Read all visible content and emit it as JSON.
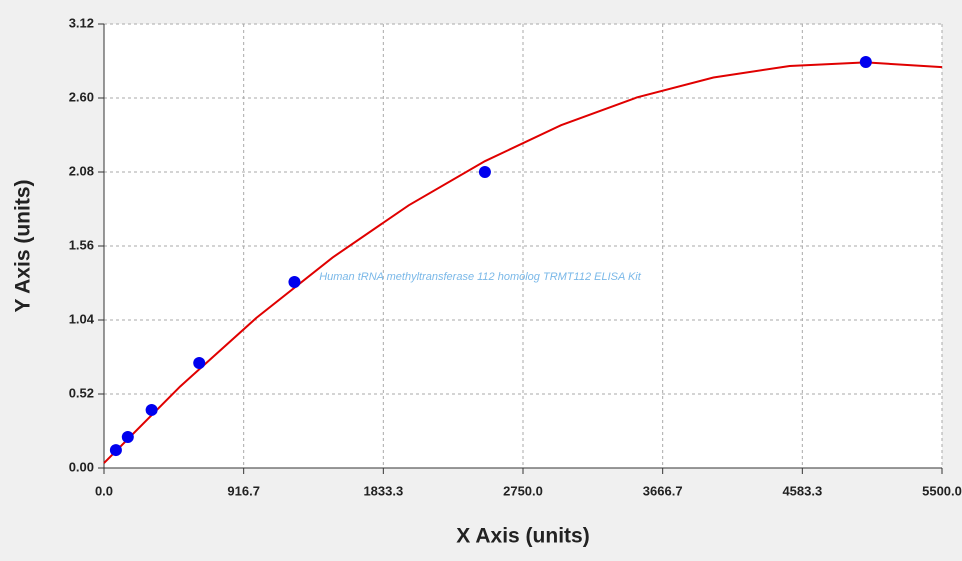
{
  "chart_data": {
    "type": "scatter",
    "x_label": "X Axis (units)",
    "y_label": "Y Axis (units)",
    "annotation": "Human tRNA methyltransferase 112 homolog TRMT112 ELISA Kit",
    "x": [
      78.125,
      156.25,
      312.5,
      625,
      1250,
      2500,
      5000
    ],
    "values": [
      0.126,
      0.218,
      0.408,
      0.738,
      1.307,
      2.08,
      2.853
    ],
    "color": "#0000ee",
    "fit": {
      "x": [
        0,
        500,
        1000,
        1500,
        2000,
        2500,
        3000,
        3500,
        4000,
        4500,
        5000,
        5500
      ],
      "values": [
        0.035,
        0.573,
        1.055,
        1.479,
        1.846,
        2.156,
        2.409,
        2.605,
        2.744,
        2.825,
        2.85,
        2.817
      ],
      "color": "#e00000"
    },
    "xlim": [
      0,
      5500
    ],
    "ylim": [
      0,
      3.12
    ],
    "xticks": [
      {
        "value": 0,
        "label": "0.0"
      },
      916.7,
      1833.3,
      {
        "value": 2750,
        "label": "2750.0"
      },
      3666.7,
      4583.3,
      {
        "value": 5500,
        "label": "5500.0"
      }
    ],
    "yticks": [
      {
        "value": 0,
        "label": "0.00"
      },
      0.52,
      1.04,
      1.56,
      2.08,
      {
        "value": 2.6,
        "label": "2.60"
      },
      3.12
    ],
    "grid": true
  }
}
